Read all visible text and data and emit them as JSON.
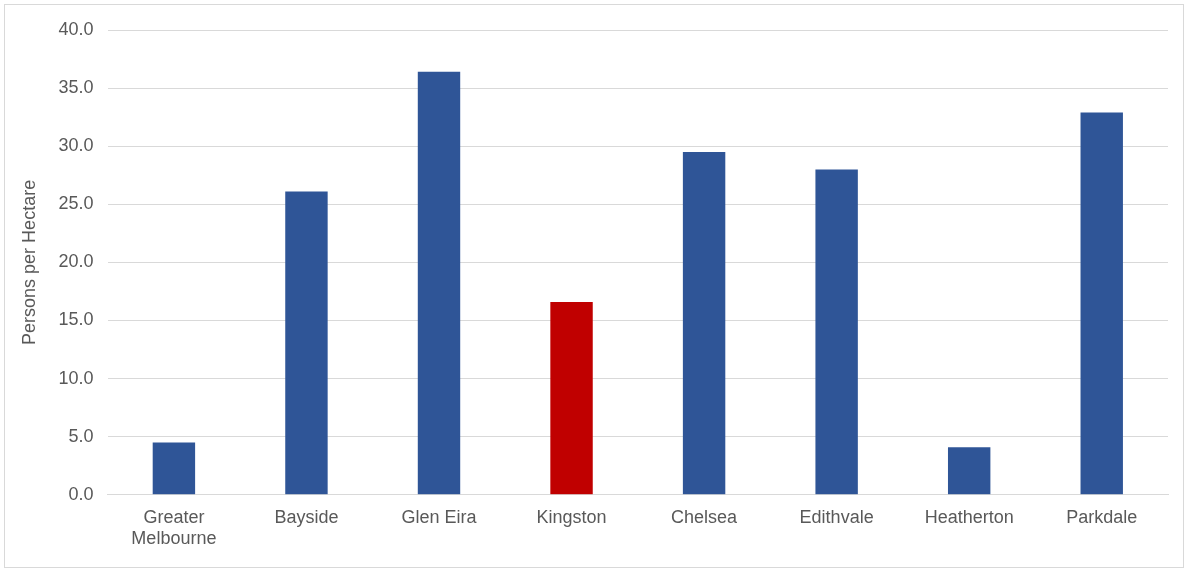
{
  "chart_data": {
    "type": "bar",
    "ylabel": "Persons per Hectare",
    "categories": [
      "Greater Melbourne",
      "Bayside",
      "Glen Eira",
      "Kingston",
      "Chelsea",
      "Edithvale",
      "Heatherton",
      "Parkdale"
    ],
    "values": [
      4.5,
      26.1,
      36.4,
      16.6,
      29.5,
      28.0,
      4.1,
      32.9
    ],
    "colors": [
      "#2f5597",
      "#2f5597",
      "#2f5597",
      "#c00000",
      "#2f5597",
      "#2f5597",
      "#2f5597",
      "#2f5597"
    ],
    "ylim": [
      0,
      40
    ],
    "yticks": [
      {
        "value": 0,
        "label": "0.0"
      },
      {
        "value": 5,
        "label": "5.0"
      },
      {
        "value": 10,
        "label": "10.0"
      },
      {
        "value": 15,
        "label": "15.0"
      },
      {
        "value": 20,
        "label": "20.0"
      },
      {
        "value": 25,
        "label": "25.0"
      },
      {
        "value": 30,
        "label": "30.0"
      },
      {
        "value": 35,
        "label": "35.0"
      },
      {
        "value": 40,
        "label": "40.0"
      }
    ],
    "grid": "y",
    "legend": false
  }
}
